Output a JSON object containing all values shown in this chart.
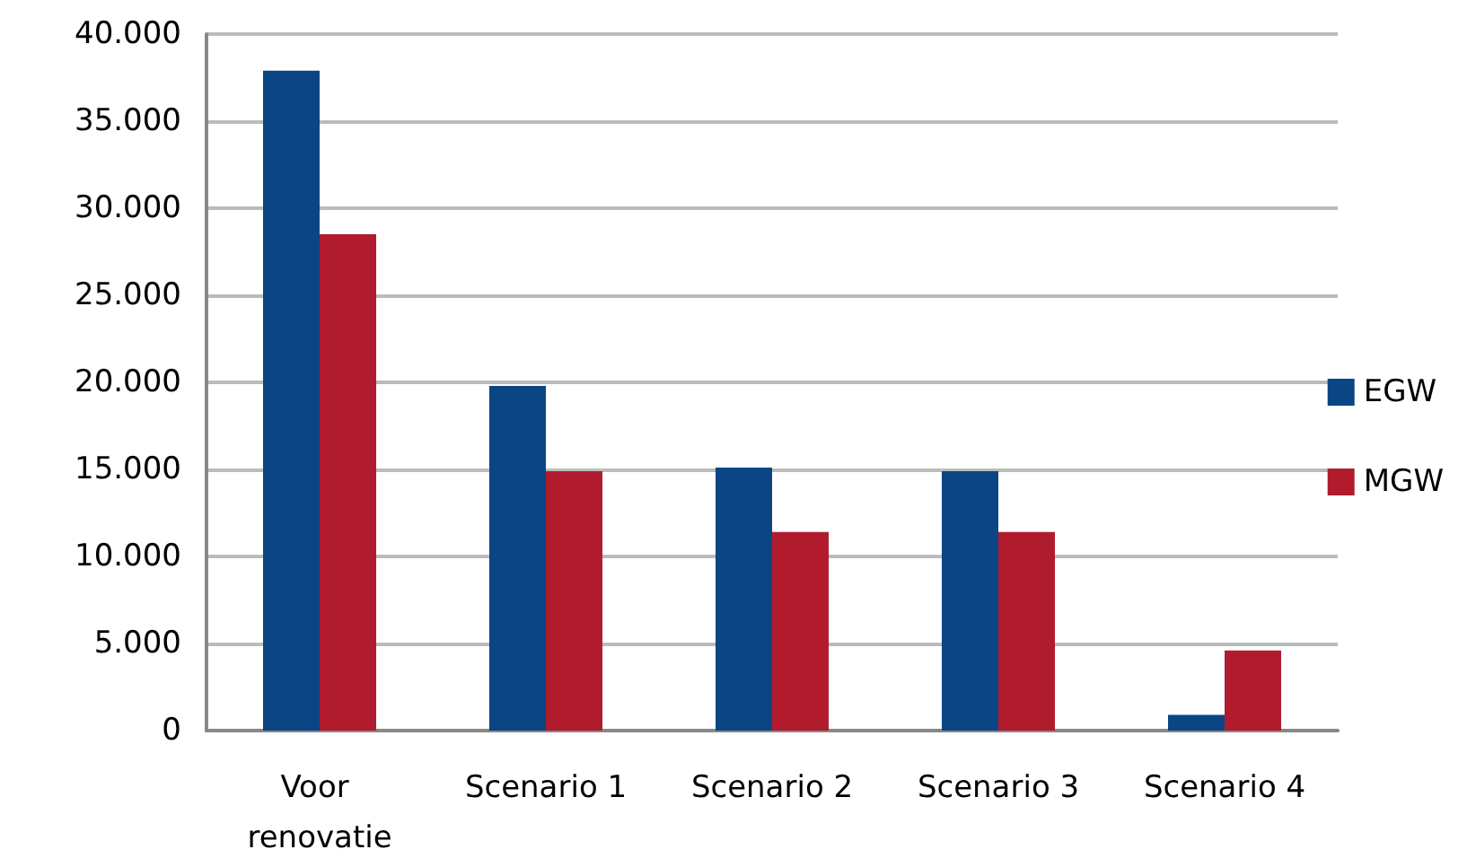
{
  "chart_data": {
    "type": "bar",
    "categories": [
      "Voor renovatie",
      "Scenario 1",
      "Scenario 2",
      "Scenario 3",
      "Scenario 4"
    ],
    "series": [
      {
        "name": "EGW",
        "color": "#0b4584",
        "values": [
          37900,
          19800,
          15100,
          14900,
          900
        ]
      },
      {
        "name": "MGW",
        "color": "#b01c2e",
        "values": [
          28500,
          14900,
          11400,
          11400,
          4600
        ]
      }
    ],
    "ylim": [
      0,
      40000
    ],
    "yticks": [
      0,
      {
        "value": 5000,
        "label": "5.000"
      },
      {
        "value": 10000,
        "label": "10.000"
      },
      {
        "value": 15000,
        "label": "15.000"
      },
      {
        "value": 20000,
        "label": "20.000"
      },
      {
        "value": 25000,
        "label": "25.000"
      },
      {
        "value": 30000,
        "label": "30.000"
      },
      {
        "value": 35000,
        "label": "35.000"
      },
      {
        "value": 40000,
        "label": "40.000"
      }
    ],
    "grid": "y",
    "legend": "right"
  }
}
